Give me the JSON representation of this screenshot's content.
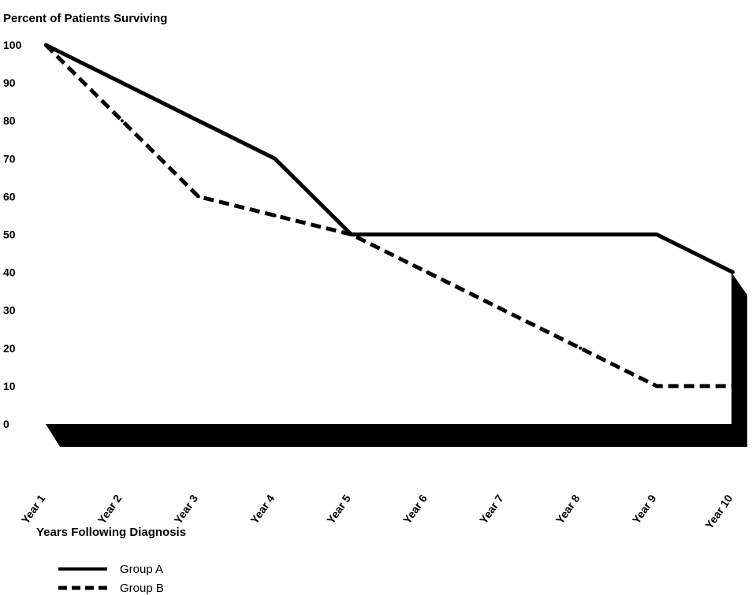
{
  "chart_data": {
    "type": "line",
    "title": "",
    "ylabel": "Percent of Patients Surviving",
    "xlabel": "Years Following Diagnosis",
    "ylim": [
      0,
      100
    ],
    "y_ticks": [
      "100",
      "90",
      "80",
      "70",
      "60",
      "50",
      "40",
      "30",
      "20",
      "10",
      "0"
    ],
    "categories": [
      "Year 1",
      "Year 2",
      "Year 3",
      "Year 4",
      "Year 5",
      "Year 6",
      "Year 7",
      "Year 8",
      "Year 9",
      "Year 10"
    ],
    "series": [
      {
        "name": "Group A",
        "style": "solid",
        "color": "#000000",
        "values": [
          100,
          90,
          80,
          70,
          50,
          50,
          50,
          50,
          50,
          40
        ]
      },
      {
        "name": "Group B",
        "style": "dashed",
        "color": "#000000",
        "values": [
          100,
          80,
          60,
          55,
          50,
          40,
          30,
          20,
          10,
          10
        ]
      }
    ],
    "grid": false,
    "legend_position": "bottom-left"
  }
}
